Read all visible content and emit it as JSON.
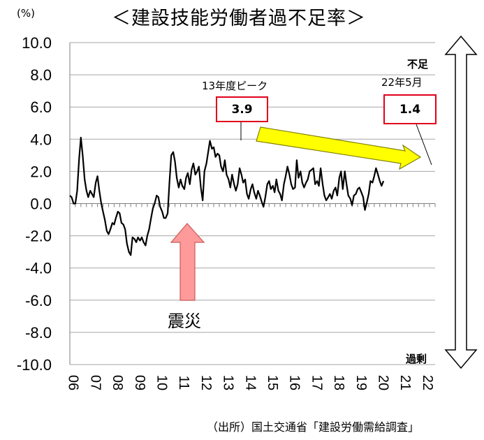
{
  "chart_data": {
    "type": "line",
    "title": "＜建設技能労働者過不足率＞",
    "ylabel": "(%)",
    "ylim": [
      -10,
      10
    ],
    "yticks": [
      "10.0",
      "8.0",
      "6.0",
      "4.0",
      "2.0",
      "0.0",
      "-2.0",
      "-4.0",
      "-6.0",
      "-8.0",
      "-10.0"
    ],
    "xticks": [
      "06",
      "07",
      "08",
      "09",
      "10",
      "11",
      "12",
      "13",
      "14",
      "15",
      "16",
      "17",
      "18",
      "19",
      "20",
      "21",
      "22"
    ],
    "grid": true,
    "series": [
      {
        "color": "#000000",
        "points": [
          [
            2006.0,
            0.5
          ],
          [
            2006.08,
            0.4
          ],
          [
            2006.17,
            0.0
          ],
          [
            2006.25,
            0.0
          ],
          [
            2006.33,
            0.8
          ],
          [
            2006.42,
            2.8
          ],
          [
            2006.5,
            4.1
          ],
          [
            2006.58,
            3.0
          ],
          [
            2006.67,
            1.5
          ],
          [
            2006.75,
            0.8
          ],
          [
            2006.83,
            0.4
          ],
          [
            2006.92,
            0.8
          ],
          [
            2007.0,
            0.6
          ],
          [
            2007.08,
            0.4
          ],
          [
            2007.17,
            1.3
          ],
          [
            2007.25,
            1.7
          ],
          [
            2007.33,
            0.8
          ],
          [
            2007.42,
            0.0
          ],
          [
            2007.5,
            -0.5
          ],
          [
            2007.58,
            -1.0
          ],
          [
            2007.67,
            -1.7
          ],
          [
            2007.75,
            -1.9
          ],
          [
            2007.83,
            -1.6
          ],
          [
            2007.92,
            -1.2
          ],
          [
            2008.0,
            -1.3
          ],
          [
            2008.08,
            -0.9
          ],
          [
            2008.17,
            -0.5
          ],
          [
            2008.25,
            -0.6
          ],
          [
            2008.33,
            -1.2
          ],
          [
            2008.42,
            -1.3
          ],
          [
            2008.5,
            -1.6
          ],
          [
            2008.58,
            -2.5
          ],
          [
            2008.67,
            -3.0
          ],
          [
            2008.75,
            -3.2
          ],
          [
            2008.83,
            -2.1
          ],
          [
            2008.92,
            -2.2
          ],
          [
            2009.0,
            -2.4
          ],
          [
            2009.08,
            -2.1
          ],
          [
            2009.17,
            -2.3
          ],
          [
            2009.25,
            -2.1
          ],
          [
            2009.33,
            -2.4
          ],
          [
            2009.42,
            -2.6
          ],
          [
            2009.5,
            -2.0
          ],
          [
            2009.58,
            -1.6
          ],
          [
            2009.67,
            -0.9
          ],
          [
            2009.75,
            -0.3
          ],
          [
            2009.83,
            0.0
          ],
          [
            2009.92,
            0.5
          ],
          [
            2010.0,
            0.4
          ],
          [
            2010.08,
            -0.2
          ],
          [
            2010.17,
            -0.5
          ],
          [
            2010.25,
            -0.9
          ],
          [
            2010.33,
            -0.9
          ],
          [
            2010.42,
            -0.6
          ],
          [
            2010.5,
            1.3
          ],
          [
            2010.58,
            3.0
          ],
          [
            2010.67,
            3.2
          ],
          [
            2010.75,
            2.6
          ],
          [
            2010.83,
            1.6
          ],
          [
            2010.92,
            1.0
          ],
          [
            2011.0,
            1.5
          ],
          [
            2011.08,
            1.1
          ],
          [
            2011.17,
            0.9
          ],
          [
            2011.25,
            1.6
          ],
          [
            2011.33,
            1.9
          ],
          [
            2011.42,
            1.2
          ],
          [
            2011.5,
            2.1
          ],
          [
            2011.58,
            2.5
          ],
          [
            2011.67,
            1.8
          ],
          [
            2011.75,
            2.0
          ],
          [
            2011.83,
            2.3
          ],
          [
            2011.92,
            1.0
          ],
          [
            2012.0,
            0.2
          ],
          [
            2012.08,
            2.0
          ],
          [
            2012.17,
            2.5
          ],
          [
            2012.25,
            3.2
          ],
          [
            2012.33,
            3.9
          ],
          [
            2012.42,
            3.4
          ],
          [
            2012.5,
            3.5
          ],
          [
            2012.58,
            2.9
          ],
          [
            2012.67,
            3.1
          ],
          [
            2012.75,
            3.0
          ],
          [
            2012.83,
            2.3
          ],
          [
            2012.92,
            2.0
          ],
          [
            2013.0,
            2.7
          ],
          [
            2013.08,
            1.8
          ],
          [
            2013.17,
            1.5
          ],
          [
            2013.25,
            1.0
          ],
          [
            2013.33,
            1.8
          ],
          [
            2013.42,
            1.2
          ],
          [
            2013.5,
            0.8
          ],
          [
            2013.58,
            1.2
          ],
          [
            2013.67,
            2.2
          ],
          [
            2013.75,
            1.8
          ],
          [
            2013.83,
            1.3
          ],
          [
            2013.92,
            1.5
          ],
          [
            2014.0,
            0.6
          ],
          [
            2014.08,
            0.3
          ],
          [
            2014.17,
            0.9
          ],
          [
            2014.25,
            1.2
          ],
          [
            2014.33,
            0.7
          ],
          [
            2014.42,
            0.3
          ],
          [
            2014.5,
            0.8
          ],
          [
            2014.58,
            0.5
          ],
          [
            2014.67,
            0.1
          ],
          [
            2014.75,
            -0.2
          ],
          [
            2014.83,
            0.4
          ],
          [
            2014.92,
            1.2
          ],
          [
            2015.0,
            1.4
          ],
          [
            2015.08,
            0.9
          ],
          [
            2015.17,
            1.1
          ],
          [
            2015.25,
            0.7
          ],
          [
            2015.33,
            1.5
          ],
          [
            2015.42,
            0.8
          ],
          [
            2015.5,
            0.6
          ],
          [
            2015.58,
            0.2
          ],
          [
            2015.67,
            1.2
          ],
          [
            2015.75,
            1.7
          ],
          [
            2015.83,
            2.3
          ],
          [
            2015.92,
            1.8
          ],
          [
            2016.0,
            1.2
          ],
          [
            2016.08,
            0.9
          ],
          [
            2016.17,
            1.0
          ],
          [
            2016.25,
            2.7
          ],
          [
            2016.33,
            1.6
          ],
          [
            2016.42,
            2.0
          ],
          [
            2016.5,
            1.3
          ],
          [
            2016.58,
            1.0
          ],
          [
            2016.67,
            1.3
          ],
          [
            2016.75,
            1.5
          ],
          [
            2016.83,
            2.0
          ],
          [
            2016.92,
            2.1
          ],
          [
            2017.0,
            2.2
          ],
          [
            2017.08,
            1.2
          ],
          [
            2017.17,
            1.4
          ],
          [
            2017.25,
            1.1
          ],
          [
            2017.33,
            2.2
          ],
          [
            2017.42,
            1.2
          ],
          [
            2017.5,
            0.5
          ],
          [
            2017.58,
            0.2
          ],
          [
            2017.67,
            0.4
          ],
          [
            2017.75,
            0.6
          ],
          [
            2017.83,
            0.3
          ],
          [
            2017.92,
            0.8
          ],
          [
            2018.0,
            1.0
          ],
          [
            2018.08,
            0.5
          ],
          [
            2018.17,
            1.6
          ],
          [
            2018.25,
            2.0
          ],
          [
            2018.33,
            0.9
          ],
          [
            2018.42,
            2.0
          ],
          [
            2018.5,
            1.2
          ],
          [
            2018.58,
            0.5
          ],
          [
            2018.67,
            0.3
          ],
          [
            2018.75,
            -0.1
          ],
          [
            2018.83,
            0.5
          ],
          [
            2018.92,
            0.6
          ],
          [
            2019.0,
            0.9
          ],
          [
            2019.08,
            1.0
          ],
          [
            2019.17,
            0.7
          ],
          [
            2019.25,
            0.4
          ],
          [
            2019.33,
            -0.4
          ],
          [
            2019.42,
            0.1
          ],
          [
            2019.5,
            0.6
          ],
          [
            2019.58,
            1.4
          ],
          [
            2019.67,
            1.3
          ],
          [
            2019.75,
            1.7
          ],
          [
            2019.83,
            2.2
          ],
          [
            2019.92,
            1.8
          ],
          [
            2020.0,
            1.4
          ],
          [
            2020.08,
            1.1
          ],
          [
            2020.17,
            1.4
          ]
        ]
      }
    ],
    "annotations": {
      "peak_label": "13年度ピーク",
      "peak_value": "3.9",
      "latest_label_top": "不足",
      "latest_label_date": "22年5月",
      "latest_value": "1.4",
      "shortage_label": "不足",
      "surplus_label": "過剰",
      "quake_label": "震災"
    },
    "source": "（出所）国土交通省「建設労働需給調査」",
    "colors": {
      "line": "#000000",
      "grid": "#a6a6a6",
      "callout_border": "#e0001b",
      "trend_arrow_fill": "#ffff00",
      "trend_arrow_stroke": "#808000",
      "quake_arrow_fill": "#ff9a9a",
      "quake_arrow_stroke": "#c85a5a"
    }
  }
}
